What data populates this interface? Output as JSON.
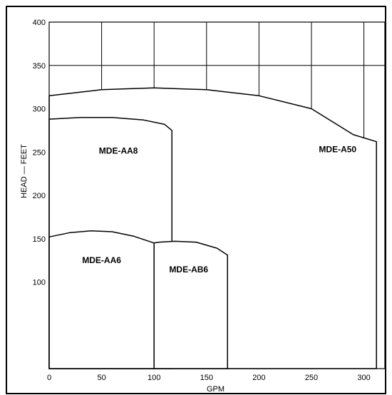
{
  "chart_data": {
    "type": "area",
    "title": "",
    "xlabel": "GPM",
    "ylabel": "HEAD — FEET",
    "xlim": [
      0,
      320
    ],
    "ylim": [
      0,
      400
    ],
    "x_ticks": [
      0,
      50,
      100,
      150,
      200,
      250,
      300
    ],
    "y_ticks": [
      100,
      150,
      200,
      250,
      300,
      350,
      400
    ],
    "x_grid": [
      0,
      50,
      100,
      150,
      200,
      250,
      300,
      320
    ],
    "y_grid": [
      350,
      400
    ],
    "grid": true,
    "legend": "none",
    "regions": [
      {
        "name": "MDE-A50",
        "label_at": [
          275,
          250
        ],
        "points": [
          [
            0,
            0
          ],
          [
            0,
            315
          ],
          [
            50,
            322
          ],
          [
            100,
            324
          ],
          [
            150,
            322
          ],
          [
            200,
            315
          ],
          [
            250,
            300
          ],
          [
            290,
            270
          ],
          [
            312,
            262
          ],
          [
            312,
            0
          ]
        ]
      },
      {
        "name": "MDE-AA8",
        "label_at": [
          66,
          248
        ],
        "points": [
          [
            0,
            0
          ],
          [
            0,
            288
          ],
          [
            30,
            290
          ],
          [
            60,
            290
          ],
          [
            90,
            287
          ],
          [
            110,
            282
          ],
          [
            117,
            275
          ],
          [
            117,
            148
          ],
          [
            117,
            0
          ]
        ]
      },
      {
        "name": "MDE-AA6",
        "label_at": [
          50,
          122
        ],
        "points": [
          [
            0,
            0
          ],
          [
            0,
            152
          ],
          [
            20,
            157
          ],
          [
            40,
            159
          ],
          [
            60,
            158
          ],
          [
            80,
            153
          ],
          [
            100,
            145
          ],
          [
            100,
            0
          ]
        ]
      },
      {
        "name": "MDE-AB6",
        "label_at": [
          133,
          111
        ],
        "points": [
          [
            100,
            0
          ],
          [
            100,
            145
          ],
          [
            105,
            146
          ],
          [
            120,
            147
          ],
          [
            140,
            146
          ],
          [
            160,
            139
          ],
          [
            170,
            131
          ],
          [
            170,
            0
          ]
        ]
      }
    ]
  }
}
